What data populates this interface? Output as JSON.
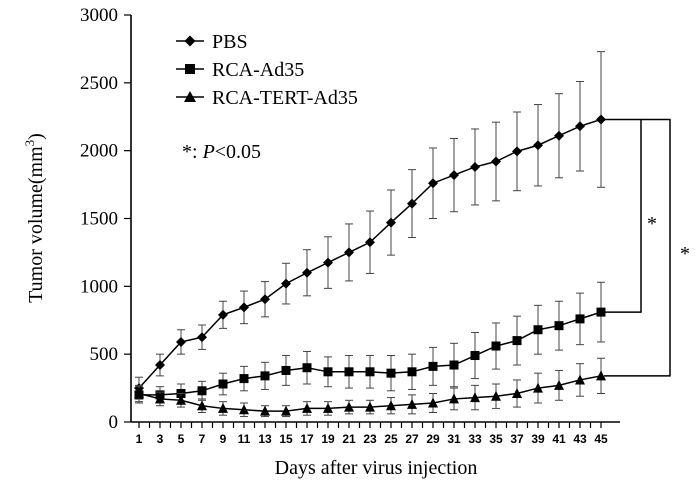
{
  "chart_data": {
    "type": "line",
    "title": "",
    "xlabel": "Days after virus injection",
    "ylabel": "Tumor volume(mm",
    "ylabel_superscript": "3",
    "ylabel_close": ")",
    "ylim": [
      0,
      3000
    ],
    "yticks": [
      "0",
      "500",
      "1000",
      "1500",
      "2000",
      "2500",
      "3000"
    ],
    "x": [
      1,
      3,
      5,
      7,
      9,
      11,
      13,
      15,
      17,
      19,
      21,
      23,
      25,
      27,
      29,
      31,
      33,
      35,
      37,
      39,
      41,
      43,
      45
    ],
    "legend_position": "top-left",
    "series": [
      {
        "name": "PBS",
        "marker": "diamond",
        "values": [
          250,
          420,
          590,
          625,
          790,
          845,
          905,
          1020,
          1100,
          1175,
          1250,
          1325,
          1470,
          1610,
          1760,
          1820,
          1880,
          1920,
          1995,
          2040,
          2110,
          2180,
          2230
        ],
        "errors": [
          80,
          80,
          90,
          90,
          100,
          120,
          130,
          150,
          170,
          190,
          210,
          230,
          240,
          250,
          260,
          270,
          280,
          290,
          290,
          300,
          310,
          330,
          500
        ]
      },
      {
        "name": "RCA-Ad35",
        "marker": "square",
        "values": [
          200,
          200,
          210,
          230,
          280,
          320,
          340,
          380,
          400,
          370,
          370,
          370,
          360,
          370,
          410,
          420,
          490,
          560,
          600,
          680,
          710,
          760,
          810
        ],
        "errors": [
          60,
          60,
          70,
          70,
          80,
          90,
          100,
          110,
          120,
          110,
          120,
          120,
          130,
          130,
          140,
          160,
          170,
          170,
          180,
          180,
          180,
          190,
          220
        ]
      },
      {
        "name": "RCA-TERT-Ad35",
        "marker": "triangle",
        "values": [
          210,
          170,
          160,
          120,
          100,
          90,
          80,
          80,
          100,
          100,
          110,
          110,
          120,
          130,
          140,
          170,
          180,
          190,
          210,
          250,
          270,
          310,
          340
        ],
        "errors": [
          60,
          50,
          50,
          50,
          50,
          50,
          40,
          40,
          50,
          50,
          50,
          50,
          60,
          70,
          70,
          80,
          90,
          90,
          100,
          110,
          110,
          120,
          130
        ]
      }
    ],
    "annotation": {
      "prefix": "*: ",
      "p": "P",
      "rest": "<0.05"
    },
    "significance": [
      "*",
      "*"
    ]
  }
}
